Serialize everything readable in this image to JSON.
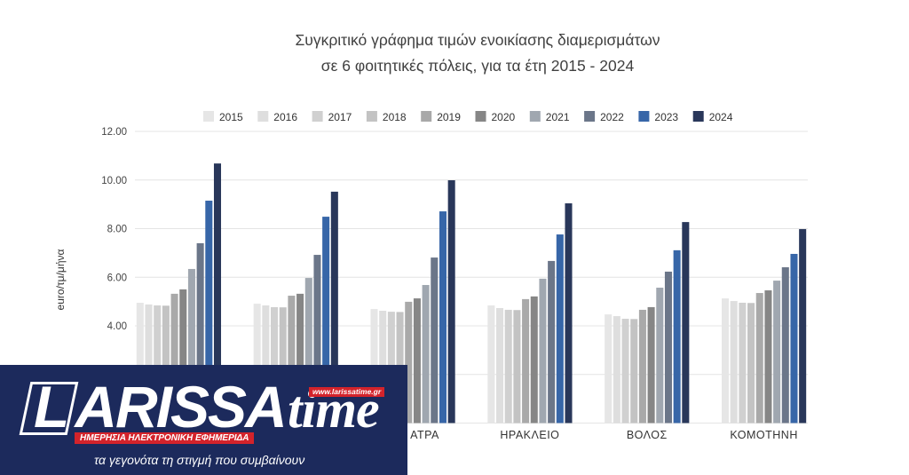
{
  "chart_data": {
    "type": "bar",
    "title_lines": [
      "Συγκριτικό γράφημα τιμών ενοικίασης διαμερισμάτων",
      "σε 6 φοιτητικές πόλεις, για τα έτη 2015 - 2024"
    ],
    "xlabel": "",
    "ylabel": "euro/τμ/μήνα",
    "ylim": [
      0,
      12
    ],
    "yticks": [
      "4.00",
      "6.00",
      "8.00",
      "10.00",
      "12.00"
    ],
    "gridlines": [
      0,
      2,
      4,
      6,
      8,
      10,
      12
    ],
    "grid": true,
    "legend_position": "top",
    "categories": [
      "",
      "",
      "ΑΤΡΑ",
      "ΗΡΑΚΛΕΙΟ",
      "ΒΟΛΟΣ",
      "ΚΟΜΟΤΗΝΗ"
    ],
    "series": [
      {
        "name": "2015",
        "color": "#e6e6e6",
        "values": [
          4.95,
          4.91,
          4.69,
          4.84,
          4.47,
          5.13
        ]
      },
      {
        "name": "2016",
        "color": "#dedede",
        "values": [
          4.88,
          4.84,
          4.62,
          4.73,
          4.4,
          5.02
        ]
      },
      {
        "name": "2017",
        "color": "#d0d0d0",
        "values": [
          4.84,
          4.77,
          4.58,
          4.66,
          4.29,
          4.95
        ]
      },
      {
        "name": "2018",
        "color": "#c3c3c3",
        "values": [
          4.83,
          4.76,
          4.57,
          4.65,
          4.28,
          4.94
        ]
      },
      {
        "name": "2019",
        "color": "#a9a9a9",
        "values": [
          5.32,
          5.24,
          4.99,
          5.1,
          4.66,
          5.35
        ]
      },
      {
        "name": "2020",
        "color": "#868686",
        "values": [
          5.5,
          5.32,
          5.13,
          5.21,
          4.77,
          5.46
        ]
      },
      {
        "name": "2021",
        "color": "#a0a7b0",
        "values": [
          6.34,
          5.97,
          5.68,
          5.94,
          5.57,
          5.86
        ]
      },
      {
        "name": "2022",
        "color": "#6b7689",
        "values": [
          7.4,
          6.92,
          6.81,
          6.67,
          6.23,
          6.41
        ]
      },
      {
        "name": "2023",
        "color": "#3766a8",
        "values": [
          9.15,
          8.49,
          8.71,
          7.76,
          7.11,
          6.96
        ]
      },
      {
        "name": "2024",
        "color": "#29375a",
        "values": [
          10.68,
          9.52,
          9.99,
          9.04,
          8.27,
          7.98
        ]
      }
    ]
  },
  "logo": {
    "wordmark": "LARISSA",
    "wordmark_suffix": "time",
    "url": "www.larissatime.gr",
    "tagline": "ΗΜΕΡΗΣΙΑ ΗΛΕΚΤΡΟΝΙΚΗ ΕΦΗΜΕΡΙΔΑ",
    "slogan": "τα γεγονότα τη στιγμή που συμβαίνουν",
    "background": "#1c2a5c",
    "accent": "#d3232b"
  }
}
